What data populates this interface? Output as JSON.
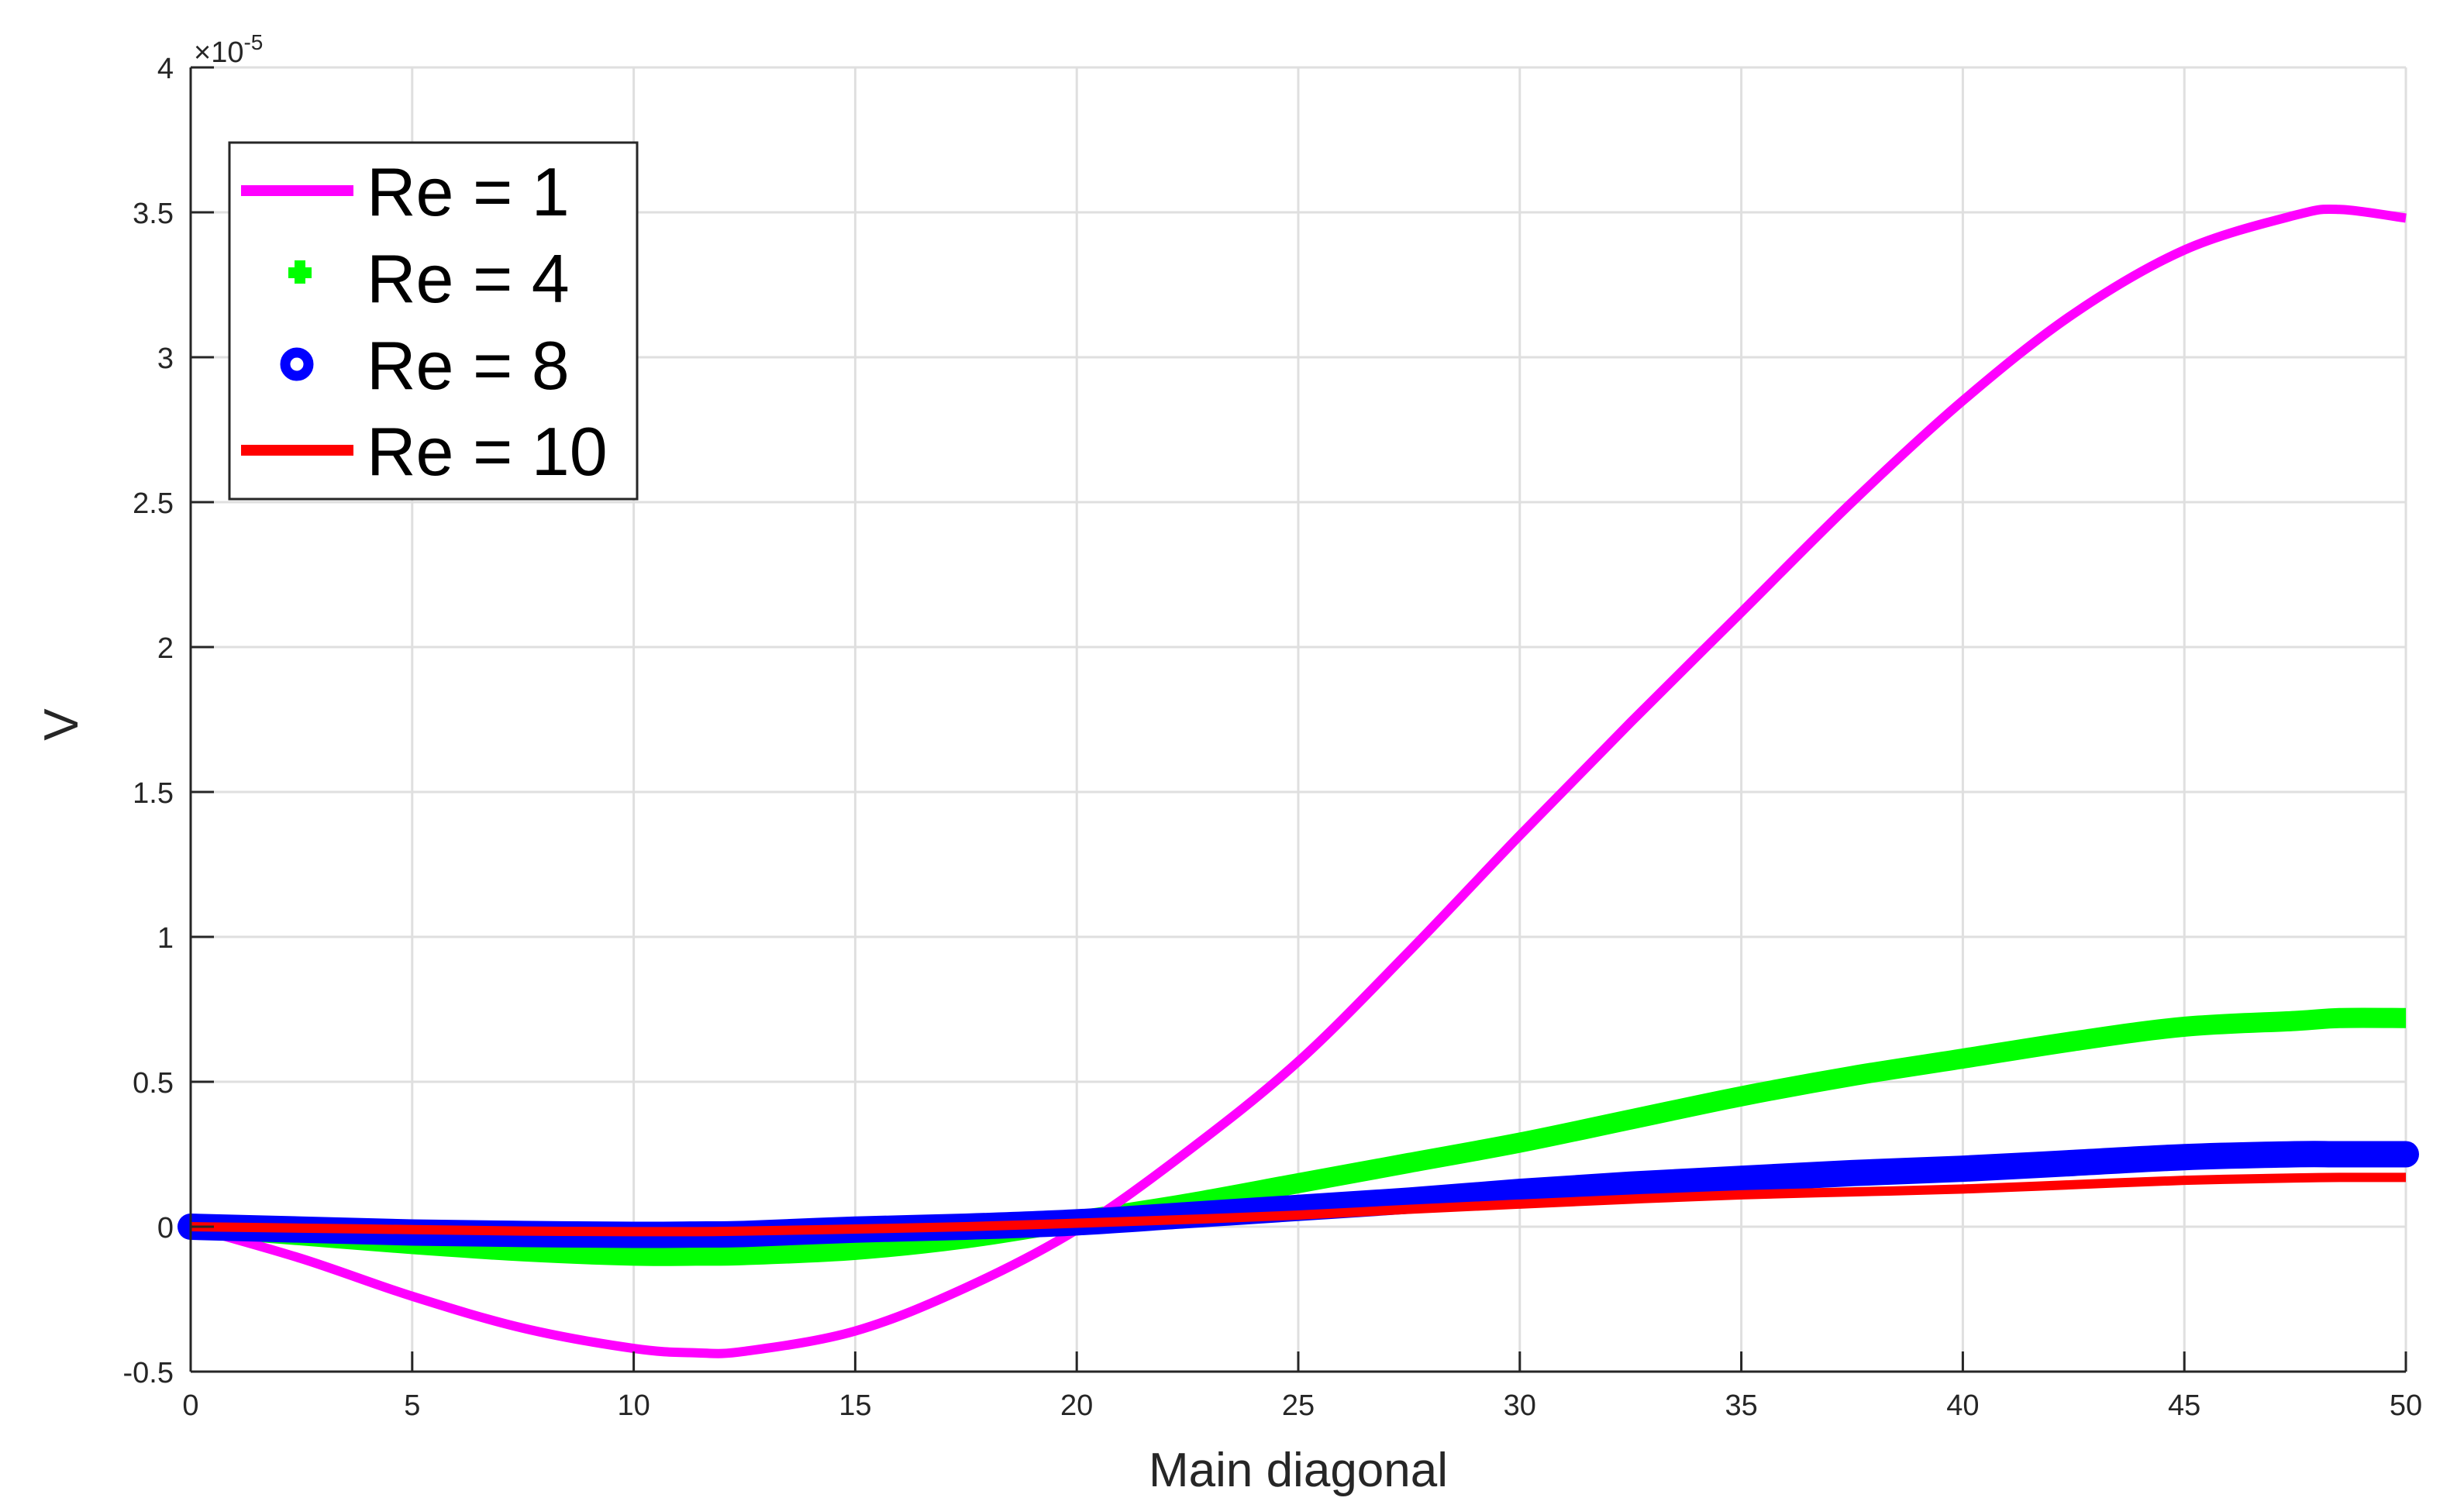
{
  "chart_data": {
    "type": "line",
    "title": "",
    "xlabel": "Main diagonal",
    "ylabel": "V",
    "y_exponent_label": "×10",
    "y_exponent_power": "-5",
    "xlim": [
      0,
      50
    ],
    "ylim": [
      -0.5,
      4
    ],
    "y_scale_factor": 1e-05,
    "grid": true,
    "legend_position": "upper-left",
    "x_ticks": [
      0,
      5,
      10,
      15,
      20,
      25,
      30,
      35,
      40,
      45,
      50
    ],
    "x_tick_labels": [
      "0",
      "5",
      "10",
      "15",
      "20",
      "25",
      "30",
      "35",
      "40",
      "45",
      "50"
    ],
    "y_ticks": [
      -0.5,
      0,
      0.5,
      1,
      1.5,
      2,
      2.5,
      3,
      3.5,
      4
    ],
    "y_tick_labels": [
      "-0.5",
      "0",
      "0.5",
      "1",
      "1.5",
      "2",
      "2.5",
      "3",
      "3.5",
      "4"
    ],
    "x": [
      0,
      2.5,
      5,
      7.5,
      10,
      11.4,
      12.5,
      15,
      17.5,
      20,
      22.5,
      25,
      27.5,
      30,
      32.5,
      35,
      37.5,
      40,
      42.5,
      45,
      47.5,
      48.5,
      50
    ],
    "series": [
      {
        "name": "Re = 1",
        "color": "#ff00ff",
        "style": "line",
        "values": [
          0,
          -0.11,
          -0.24,
          -0.35,
          -0.42,
          -0.435,
          -0.43,
          -0.36,
          -0.21,
          -0.01,
          0.26,
          0.57,
          0.95,
          1.35,
          1.74,
          2.12,
          2.5,
          2.85,
          3.15,
          3.37,
          3.49,
          3.51,
          3.48
        ]
      },
      {
        "name": "Re = 4",
        "color": "#00ff00",
        "style": "plus-markers",
        "values": [
          0,
          -0.03,
          -0.06,
          -0.085,
          -0.1,
          -0.1,
          -0.098,
          -0.08,
          -0.04,
          0.02,
          0.08,
          0.15,
          0.22,
          0.29,
          0.37,
          0.45,
          0.52,
          0.58,
          0.64,
          0.69,
          0.71,
          0.72,
          0.72
        ]
      },
      {
        "name": "Re = 8",
        "color": "#0000ff",
        "style": "circle-markers",
        "values": [
          0,
          -0.01,
          -0.02,
          -0.025,
          -0.028,
          -0.027,
          -0.025,
          -0.01,
          0.0,
          0.015,
          0.04,
          0.065,
          0.09,
          0.12,
          0.145,
          0.165,
          0.185,
          0.2,
          0.22,
          0.24,
          0.25,
          0.25,
          0.25
        ]
      },
      {
        "name": "Re = 10",
        "color": "#ff0000",
        "style": "line",
        "values": [
          0,
          -0.005,
          -0.01,
          -0.015,
          -0.017,
          -0.017,
          -0.015,
          -0.008,
          0.0,
          0.012,
          0.025,
          0.04,
          0.06,
          0.078,
          0.095,
          0.11,
          0.12,
          0.13,
          0.145,
          0.16,
          0.168,
          0.17,
          0.17
        ]
      }
    ]
  },
  "legend": {
    "items": [
      {
        "label": "Re = 1",
        "color": "#ff00ff",
        "symbol": "line"
      },
      {
        "label": "Re = 4",
        "color": "#00ff00",
        "symbol": "plus"
      },
      {
        "label": "Re = 8",
        "color": "#0000ff",
        "symbol": "circle"
      },
      {
        "label": "Re = 10",
        "color": "#ff0000",
        "symbol": "line"
      }
    ]
  },
  "colors": {
    "axis": "#262626",
    "grid": "#dfdfdf",
    "background": "#ffffff"
  }
}
